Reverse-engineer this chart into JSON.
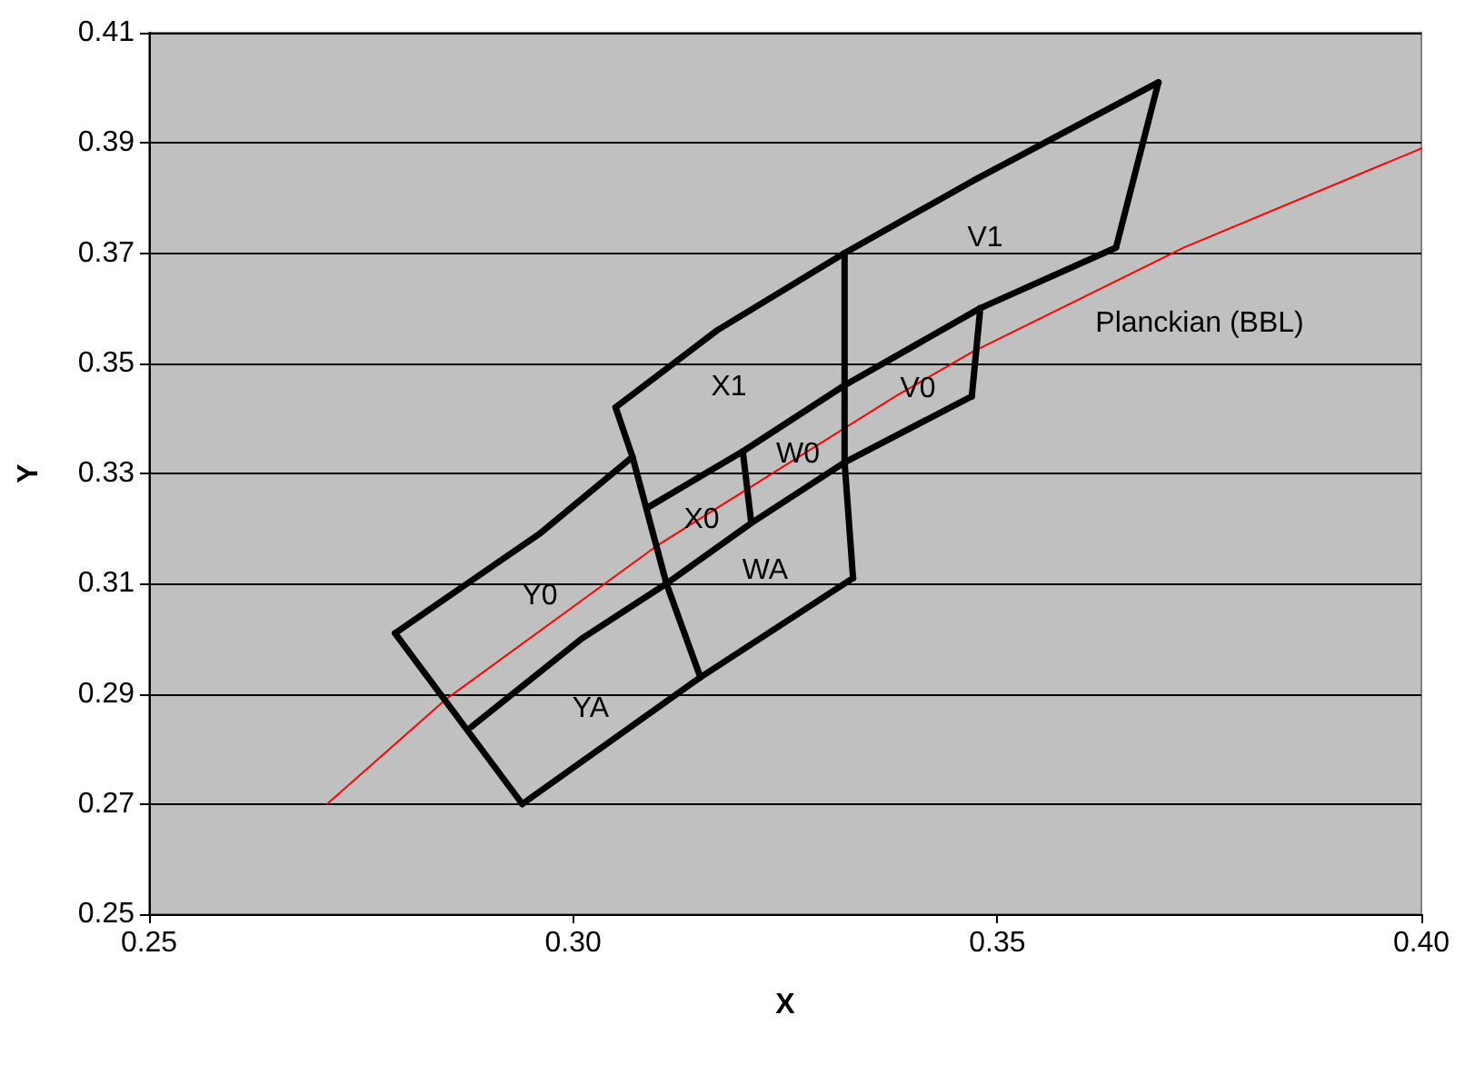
{
  "chart_data": {
    "type": "line",
    "xlabel": "X",
    "ylabel": "Y",
    "xlim": [
      0.25,
      0.4
    ],
    "xticks": [
      0.25,
      {
        "value": 0.3,
        "label": "0.30"
      },
      0.35,
      {
        "value": 0.4,
        "label": "0.40"
      }
    ],
    "ylim": [
      0.25,
      0.41
    ],
    "yticks": [
      0.25,
      0.27,
      0.29,
      0.31,
      0.33,
      0.35,
      0.37,
      0.39,
      0.41
    ],
    "grid": "y",
    "marker": "none",
    "series": [
      {
        "color": "#ff0000",
        "x": [
          0.271,
          0.285,
          0.31,
          0.338,
          0.347,
          0.372,
          0.4
        ],
        "values": [
          0.27,
          0.289,
          0.317,
          0.344,
          0.352,
          0.371,
          0.389
        ]
      },
      {
        "color": "#000000",
        "x": [
          0.279,
          0.296,
          0.307
        ],
        "values": [
          0.301,
          0.319,
          0.333
        ]
      },
      {
        "color": "#000000",
        "x": [
          0.305,
          0.307,
          0.311,
          0.315
        ],
        "values": [
          0.342,
          0.333,
          0.31,
          0.293
        ]
      },
      {
        "color": "#000000",
        "x": [
          0.305,
          0.317,
          0.332,
          0.347,
          0.369
        ],
        "values": [
          0.342,
          0.356,
          0.37,
          0.383,
          0.401
        ]
      },
      {
        "color": "#000000",
        "x": [
          0.369,
          0.364
        ],
        "values": [
          0.401,
          0.371
        ]
      },
      {
        "color": "#000000",
        "x": [
          0.364,
          0.348,
          0.332,
          0.32,
          0.309
        ],
        "values": [
          0.371,
          0.36,
          0.346,
          0.334,
          0.324
        ]
      },
      {
        "color": "#000000",
        "x": [
          0.348,
          0.347
        ],
        "values": [
          0.36,
          0.344
        ]
      },
      {
        "color": "#000000",
        "x": [
          0.347,
          0.332,
          0.321,
          0.311,
          0.301,
          0.288
        ],
        "values": [
          0.344,
          0.332,
          0.321,
          0.31,
          0.3,
          0.284
        ]
      },
      {
        "color": "#000000",
        "x": [
          0.332,
          0.332,
          0.332,
          0.333
        ],
        "values": [
          0.37,
          0.346,
          0.332,
          0.311
        ]
      },
      {
        "color": "#000000",
        "x": [
          0.333,
          0.315,
          0.294
        ],
        "values": [
          0.311,
          0.293,
          0.27
        ]
      },
      {
        "color": "#000000",
        "x": [
          0.279,
          0.294
        ],
        "values": [
          0.301,
          0.27
        ]
      },
      {
        "color": "#000000",
        "x": [
          0.32,
          0.321
        ],
        "values": [
          0.334,
          0.321
        ]
      }
    ],
    "annotations": [
      "V1",
      "V0",
      "X1",
      "W0",
      "X0",
      "Y0",
      "WA",
      "YA",
      "Planckian (BBL)"
    ]
  }
}
